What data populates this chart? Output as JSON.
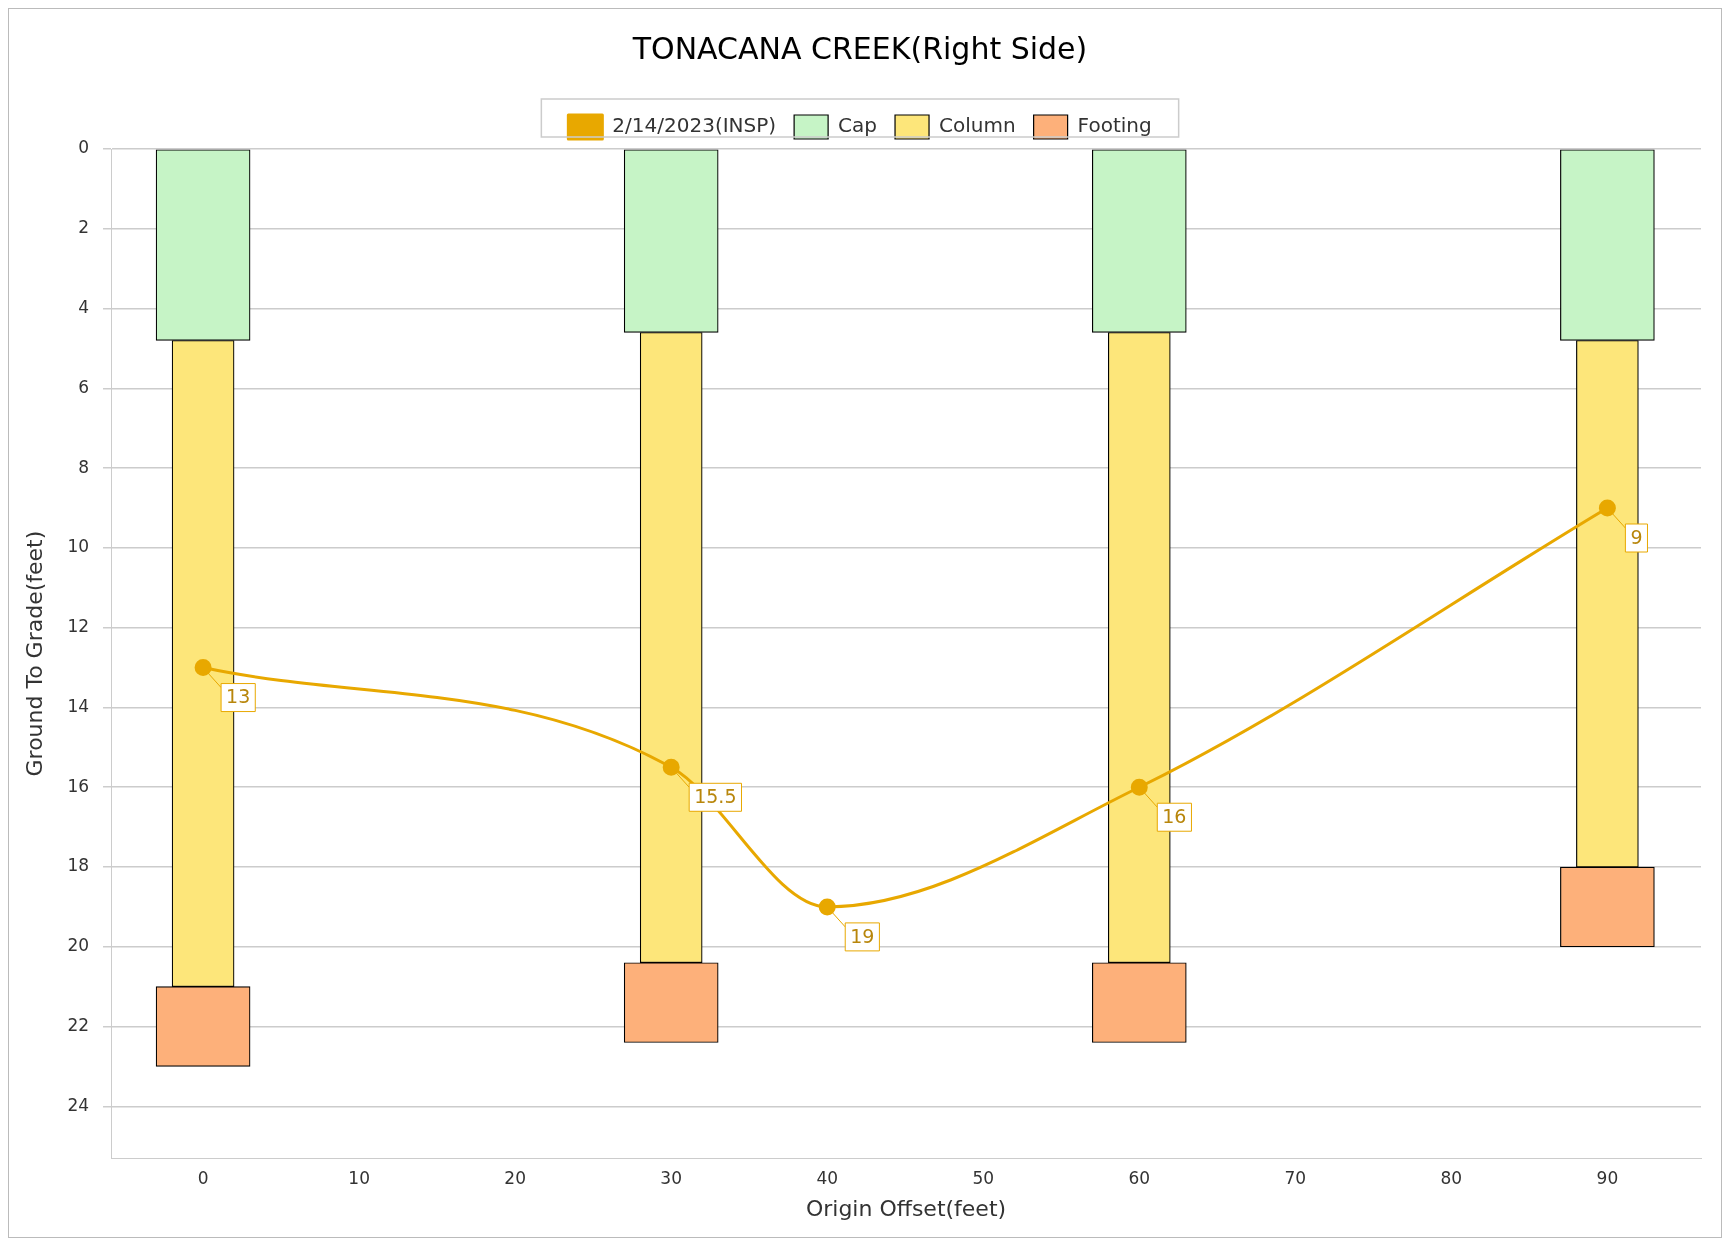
{
  "chart_data": {
    "type": "bar",
    "title": "TONACANA CREEK(Right Side)",
    "xlabel": "Origin Offset(feet)",
    "ylabel": "Ground To Grade(feet)",
    "x": [
      0,
      30,
      60,
      90
    ],
    "series": [
      {
        "name": "Cap",
        "color": "#c6f4c6",
        "base": [
          0,
          0,
          0,
          0
        ],
        "values": [
          4.8,
          4.6,
          4.6,
          4.8
        ]
      },
      {
        "name": "Column",
        "color": "#fde67a",
        "base": [
          4.8,
          4.6,
          4.6,
          4.8
        ],
        "values": [
          16.2,
          15.8,
          15.8,
          13.2
        ]
      },
      {
        "name": "Footing",
        "color": "#fdb07a",
        "base": [
          21,
          20.4,
          20.4,
          18
        ],
        "values": [
          2,
          2,
          2,
          2
        ]
      },
      {
        "name": "2/14/2023(INSP)",
        "type": "line",
        "color": "#e8a800",
        "x": [
          0,
          30,
          40,
          60,
          90
        ],
        "values": [
          13,
          15.5,
          19,
          16,
          9
        ],
        "value_labels": [
          "13",
          "15.5",
          "19",
          "16",
          "9"
        ]
      }
    ],
    "marker": "circle",
    "line_style": "solid",
    "xlim": [
      -5.9,
      96
    ],
    "xticks": [
      0,
      10,
      20,
      30,
      40,
      50,
      60,
      70,
      80,
      90
    ],
    "ylim": [
      25.3,
      0
    ],
    "yticks": [
      0,
      2,
      4,
      6,
      8,
      10,
      12,
      14,
      16,
      18,
      20,
      22,
      24
    ],
    "grid": "y",
    "legend": "top"
  }
}
